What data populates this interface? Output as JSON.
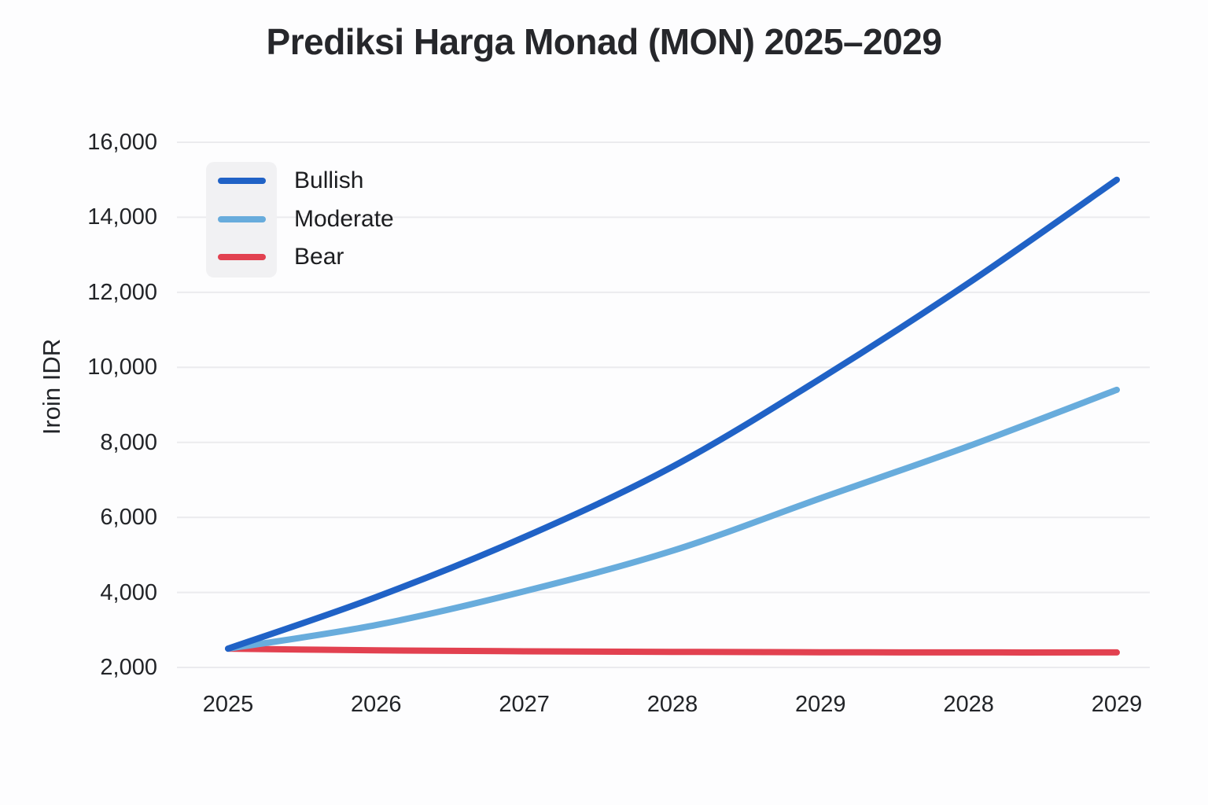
{
  "chart_data": {
    "type": "line",
    "title": "Prediksi Harga Monad (MON) 2025–2029",
    "ylabel": "Iroin IDR",
    "xlabel": "",
    "categories": [
      "2025",
      "2026",
      "2027",
      "2028",
      "2029",
      "2028",
      "2029"
    ],
    "series": [
      {
        "name": "Bullish",
        "color": "#2062c6",
        "values": [
          2500,
          3875,
          5475,
          7350,
          9700,
          12250,
          15000
        ]
      },
      {
        "name": "Moderate",
        "color": "#68acdc",
        "values": [
          2500,
          3130,
          4030,
          5110,
          6510,
          7900,
          9400
        ]
      },
      {
        "name": "Bear",
        "color": "#e24150",
        "values": [
          2500,
          2455,
          2430,
          2415,
          2405,
          2400,
          2400
        ]
      }
    ],
    "ylim": [
      2000,
      16000
    ],
    "y_ticks": {
      "values": [
        2000,
        4000,
        6000,
        8000,
        10000,
        12000,
        14000,
        16000
      ],
      "labels": [
        "2,000",
        "4,000",
        "6,000",
        "8,000",
        "10,000",
        "12,000",
        "14,000",
        "16,000"
      ]
    },
    "grid": "horizontal",
    "legend_position": "upper-left",
    "line_width": 8
  },
  "colors": {
    "background": "#fdfdfe",
    "gridline": "#ebebee",
    "text": "#222428",
    "legend_box": "#f1f1f3"
  }
}
